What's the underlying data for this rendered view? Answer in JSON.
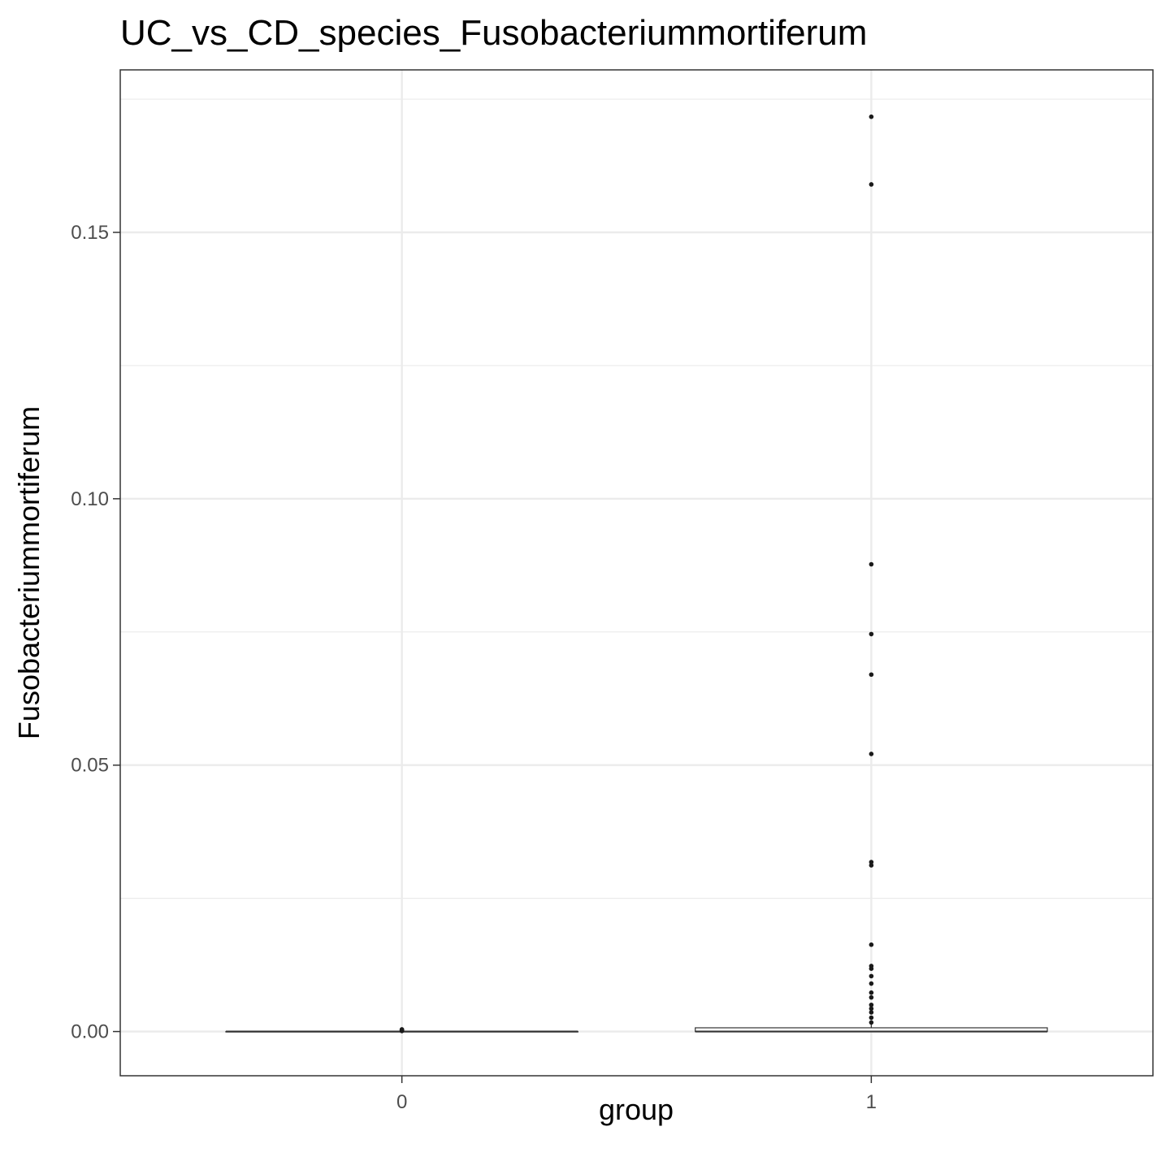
{
  "chart_data": {
    "type": "box",
    "title": "UC_vs_CD_species_Fusobacteriummortiferum",
    "xlabel": "group",
    "ylabel": "Fusobacteriummortiferum",
    "categories": [
      "0",
      "1"
    ],
    "ylim": [
      -0.0083,
      0.1805
    ],
    "yticks": [
      0.0,
      0.05,
      0.1,
      0.15
    ],
    "ytick_labels": [
      "0.00",
      "0.05",
      "0.10",
      "0.15"
    ],
    "grid": true,
    "boxes": [
      {
        "group": "0",
        "min": 0.0,
        "q1": 0.0,
        "median": 0.0,
        "q3": 0.0,
        "max": 0.0,
        "outliers": [
          0.0001,
          0.0002,
          0.0003,
          0.0004
        ]
      },
      {
        "group": "1",
        "min": 0.0,
        "q1": 0.0,
        "median": 0.0,
        "q3": 0.0007,
        "max": 0.0015,
        "outliers": [
          0.1717,
          0.159,
          0.0877,
          0.0746,
          0.067,
          0.0521,
          0.0318,
          0.0312,
          0.0163,
          0.0123,
          0.0118,
          0.0104,
          0.009,
          0.0073,
          0.0064,
          0.005,
          0.0043,
          0.0036,
          0.0026,
          0.0017
        ]
      }
    ]
  }
}
